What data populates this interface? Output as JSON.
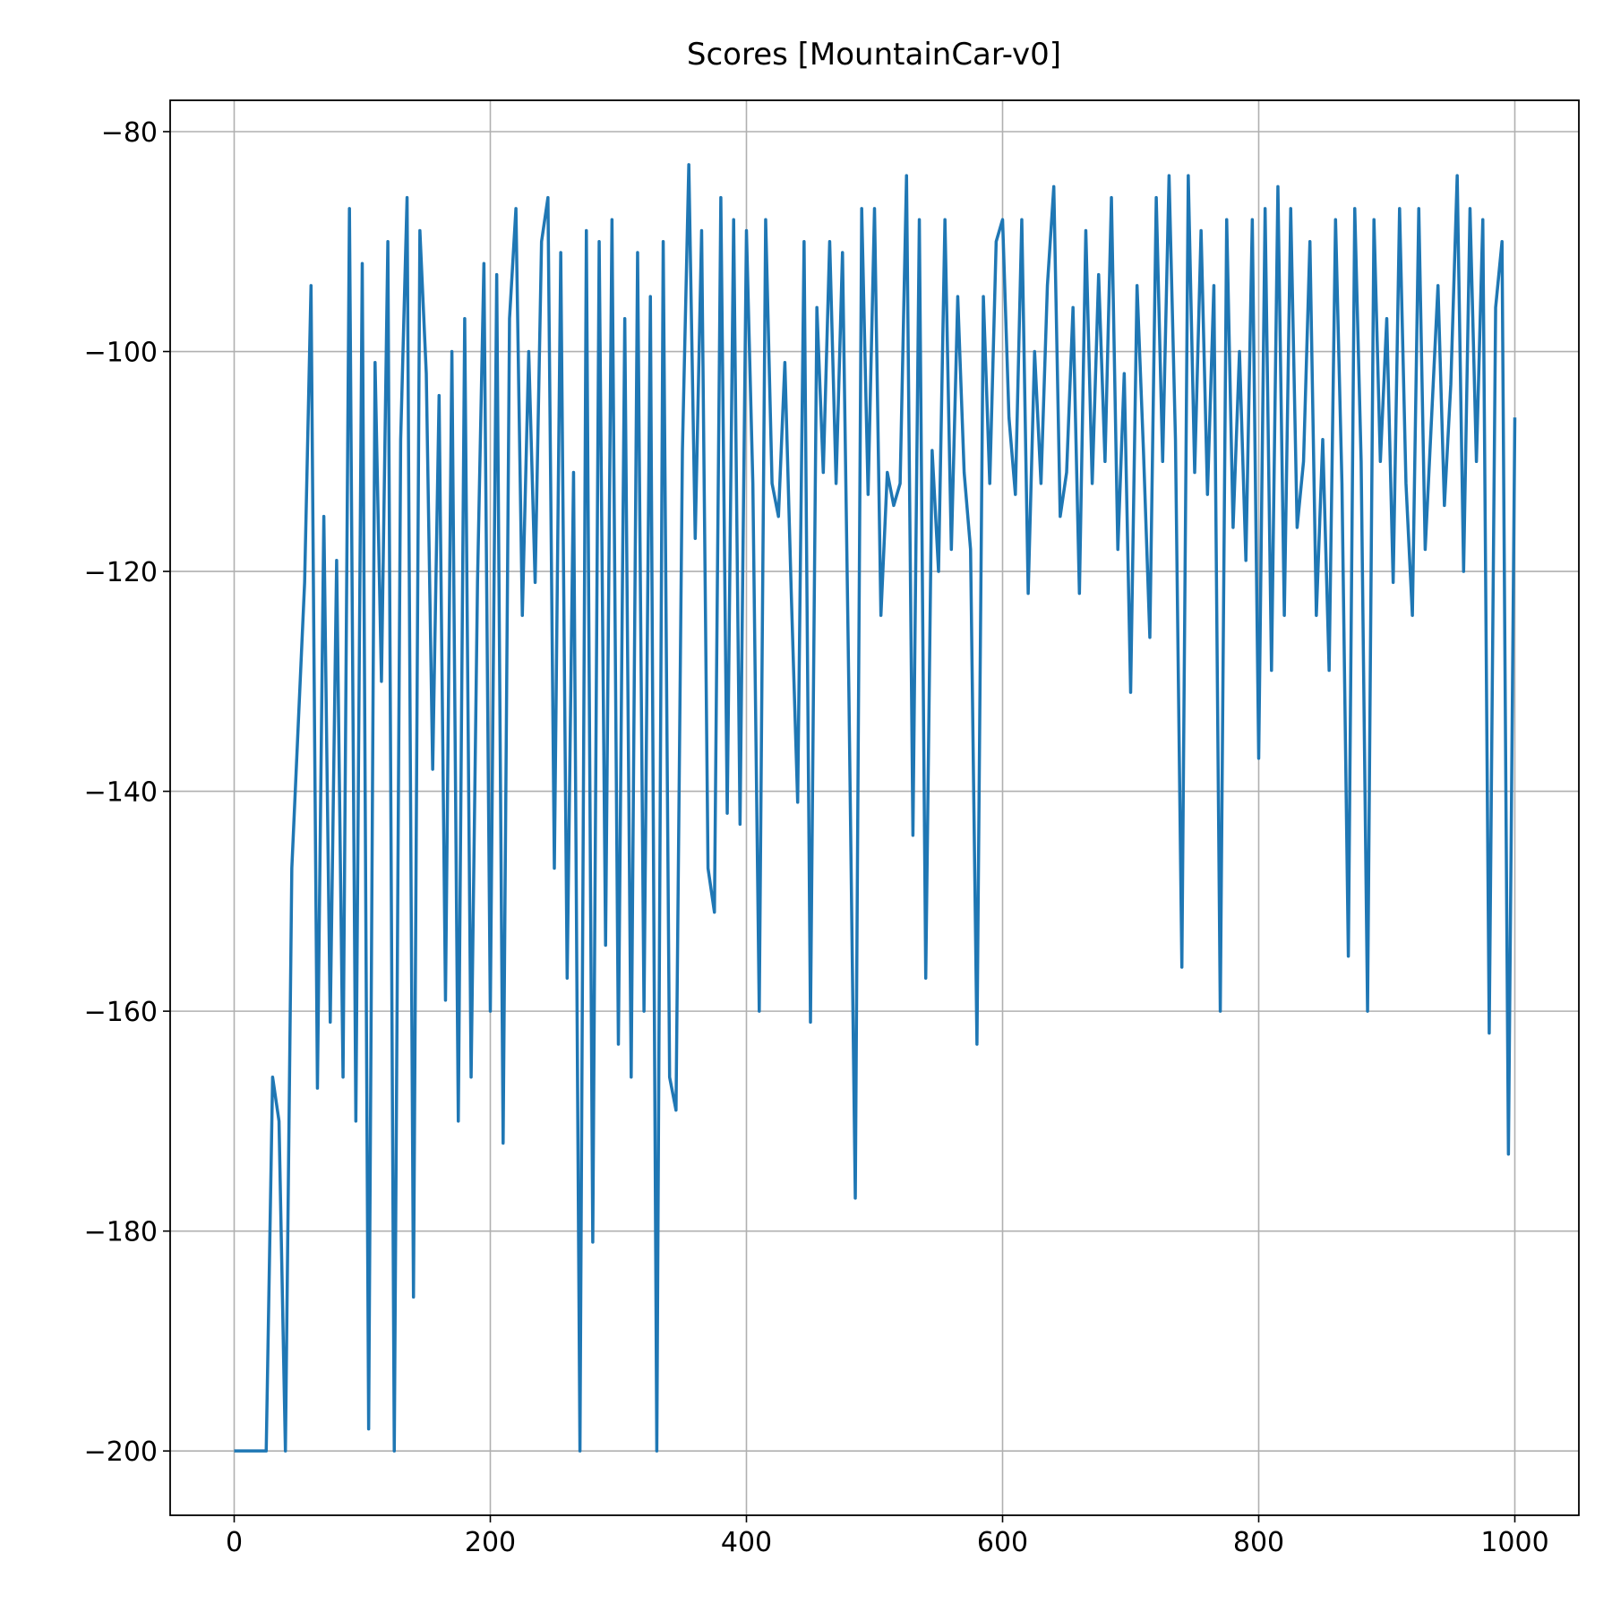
{
  "chart_data": {
    "type": "line",
    "title": "Scores [MountainCar-v0]",
    "color": "#1f77b4",
    "grid": true,
    "xlim": [
      -50,
      1050
    ],
    "ylim": [
      -205.85,
      -77.15
    ],
    "xticks": [
      0,
      200,
      400,
      600,
      800,
      1000
    ],
    "yticks": [
      {
        "value": -200,
        "label": "−200"
      },
      {
        "value": -180,
        "label": "−180"
      },
      {
        "value": -160,
        "label": "−160"
      },
      {
        "value": -140,
        "label": "−140"
      },
      {
        "value": -120,
        "label": "−120"
      },
      {
        "value": -100,
        "label": "−100"
      },
      {
        "value": -80,
        "label": "−80"
      }
    ],
    "x": [
      0,
      5,
      10,
      15,
      20,
      25,
      30,
      35,
      40,
      45,
      50,
      55,
      60,
      65,
      70,
      75,
      80,
      85,
      90,
      95,
      100,
      105,
      110,
      115,
      120,
      125,
      130,
      135,
      140,
      145,
      150,
      155,
      160,
      165,
      170,
      175,
      180,
      185,
      190,
      195,
      200,
      205,
      210,
      215,
      220,
      225,
      230,
      235,
      240,
      245,
      250,
      255,
      260,
      265,
      270,
      275,
      280,
      285,
      290,
      295,
      300,
      305,
      310,
      315,
      320,
      325,
      330,
      335,
      340,
      345,
      350,
      355,
      360,
      365,
      370,
      375,
      380,
      385,
      390,
      395,
      400,
      405,
      410,
      415,
      420,
      425,
      430,
      435,
      440,
      445,
      450,
      455,
      460,
      465,
      470,
      475,
      480,
      485,
      490,
      495,
      500,
      505,
      510,
      515,
      520,
      525,
      530,
      535,
      540,
      545,
      550,
      555,
      560,
      565,
      570,
      575,
      580,
      585,
      590,
      595,
      600,
      605,
      610,
      615,
      620,
      625,
      630,
      635,
      640,
      645,
      650,
      655,
      660,
      665,
      670,
      675,
      680,
      685,
      690,
      695,
      700,
      705,
      710,
      715,
      720,
      725,
      730,
      735,
      740,
      745,
      750,
      755,
      760,
      765,
      770,
      775,
      780,
      785,
      790,
      795,
      800,
      805,
      810,
      815,
      820,
      825,
      830,
      835,
      840,
      845,
      850,
      855,
      860,
      865,
      870,
      875,
      880,
      885,
      890,
      895,
      900,
      905,
      910,
      915,
      920,
      925,
      930,
      935,
      940,
      945,
      950,
      955,
      960,
      965,
      970,
      975,
      980,
      985,
      990,
      995,
      1000
    ],
    "values": [
      -200,
      -200,
      -200,
      -200,
      -200,
      -200,
      -166,
      -170,
      -200,
      -147,
      -134,
      -121,
      -94,
      -167,
      -115,
      -161,
      -119,
      -166,
      -87,
      -170,
      -92,
      -198,
      -101,
      -130,
      -90,
      -200,
      -108,
      -86,
      -186,
      -89,
      -102,
      -138,
      -104,
      -159,
      -100,
      -170,
      -97,
      -166,
      -121,
      -92,
      -160,
      -93,
      -172,
      -97,
      -87,
      -124,
      -100,
      -121,
      -90,
      -86,
      -147,
      -91,
      -157,
      -111,
      -200,
      -89,
      -181,
      -90,
      -154,
      -88,
      -163,
      -97,
      -166,
      -91,
      -160,
      -95,
      -200,
      -90,
      -166,
      -169,
      -109,
      -83,
      -117,
      -89,
      -147,
      -151,
      -86,
      -142,
      -88,
      -143,
      -89,
      -112,
      -160,
      -88,
      -112,
      -115,
      -101,
      -122,
      -141,
      -90,
      -161,
      -96,
      -111,
      -90,
      -112,
      -91,
      -131,
      -177,
      -87,
      -113,
      -87,
      -124,
      -111,
      -114,
      -112,
      -84,
      -144,
      -88,
      -157,
      -109,
      -120,
      -88,
      -118,
      -95,
      -111,
      -118,
      -163,
      -95,
      -112,
      -90,
      -88,
      -106,
      -113,
      -88,
      -122,
      -100,
      -112,
      -94,
      -85,
      -115,
      -111,
      -96,
      -122,
      -89,
      -112,
      -93,
      -110,
      -86,
      -118,
      -102,
      -131,
      -94,
      -109,
      -126,
      -86,
      -110,
      -84,
      -108,
      -156,
      -84,
      -111,
      -89,
      -113,
      -94,
      -160,
      -88,
      -116,
      -100,
      -119,
      -88,
      -137,
      -87,
      -129,
      -85,
      -124,
      -87,
      -116,
      -110,
      -90,
      -124,
      -108,
      -129,
      -88,
      -112,
      -155,
      -87,
      -110,
      -160,
      -88,
      -110,
      -97,
      -121,
      -87,
      -112,
      -124,
      -87,
      -118,
      -106,
      -94,
      -114,
      -103,
      -84,
      -120,
      -87,
      -110,
      -88,
      -162,
      -96,
      -90,
      -173,
      -106
    ]
  }
}
